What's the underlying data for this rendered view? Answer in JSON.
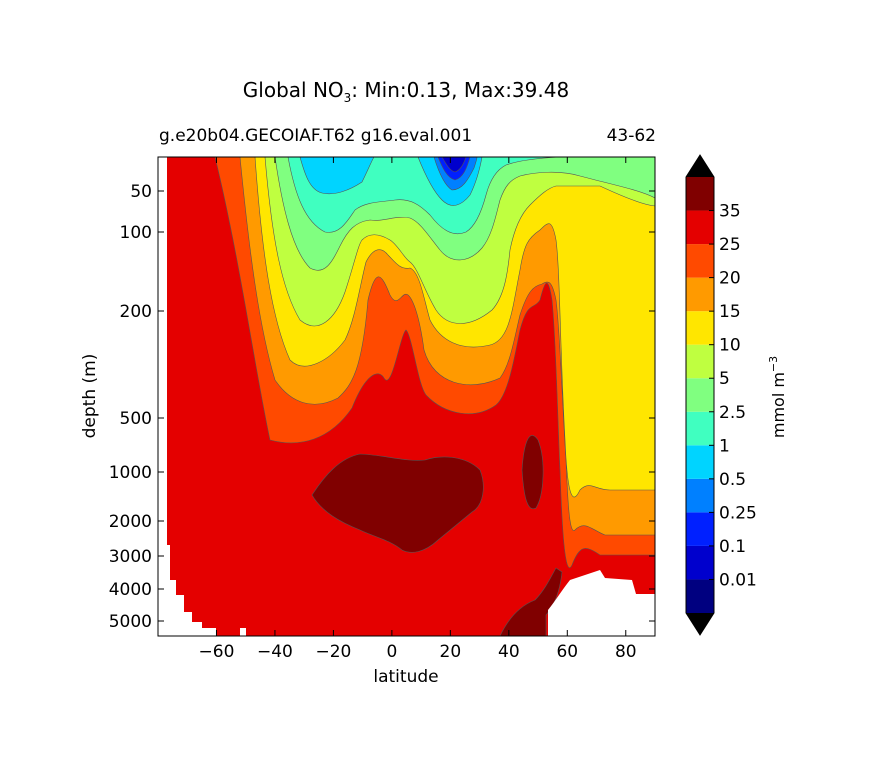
{
  "figure": {
    "title_prefix": "Global NO",
    "title_subscript": "3",
    "title_suffix": ": Min:0.13, Max:39.48",
    "subtitle_left": "g.e20b04.GECOIAF.T62 g16.eval.001",
    "subtitle_right": "43-62"
  },
  "chart_data": {
    "type": "heatmap",
    "subtype": "filled-contour",
    "xlabel": "latitude",
    "ylabel": "depth (m)",
    "x_ticks": [
      "−60",
      "−40",
      "−20",
      "0",
      "20",
      "40",
      "60",
      "80"
    ],
    "x_tick_values": [
      -60,
      -40,
      -20,
      0,
      20,
      40,
      60,
      80
    ],
    "xlim": [
      -80,
      90
    ],
    "y_ticks": [
      "50",
      "100",
      "200",
      "500",
      "1000",
      "2000",
      "3000",
      "4000",
      "5000"
    ],
    "y_tick_values": [
      50,
      100,
      200,
      500,
      1000,
      2000,
      3000,
      4000,
      5000
    ],
    "y_axis": "depth, increasing downward (stretched scale)",
    "ylim": [
      0,
      5500
    ],
    "colorbar": {
      "label": "mmol m",
      "label_superscript": "−3",
      "extend": "both",
      "levels": [
        0,
        0.01,
        0.1,
        0.25,
        0.5,
        1,
        2.5,
        5,
        10,
        15,
        20,
        25,
        35
      ],
      "tick_labels": [
        "0.01",
        "0.1",
        "0.25",
        "0.5",
        "1",
        "2.5",
        "5",
        "10",
        "15",
        "20",
        "25",
        "35"
      ],
      "colors": [
        "#000080",
        "#0000cd",
        "#0020ff",
        "#0080ff",
        "#00d4ff",
        "#40ffc0",
        "#80ff80",
        "#bfff40",
        "#ffe600",
        "#ff9a00",
        "#ff4a00",
        "#e40000",
        "#800000"
      ],
      "under_color": "#000000",
      "over_color": "#000000"
    },
    "field_description_notes": "values read from contour bands",
    "sections": [
      {
        "latitude": -70,
        "values_by_depth": {
          "50": 28,
          "500": 30,
          "1000": 30,
          "4000": 29
        }
      },
      {
        "latitude": -20,
        "values_by_depth": {
          "50": 2,
          "100": 3,
          "200": 12,
          "500": 22,
          "1000": 34,
          "2000": 36
        }
      },
      {
        "latitude": 0,
        "values_by_depth": {
          "50": 2,
          "100": 7,
          "200": 17,
          "500": 31,
          "1000": 36,
          "2000": 37
        }
      },
      {
        "latitude": 20,
        "values_by_depth": {
          "50": 0.2,
          "100": 3,
          "200": 11,
          "500": 23,
          "1000": 36
        }
      },
      {
        "latitude": 50,
        "values_by_depth": {
          "50": 9,
          "100": 14,
          "200": 27,
          "500": 33,
          "1000": 36,
          "4000": 36
        }
      },
      {
        "latitude": 80,
        "values_by_depth": {
          "50": 7,
          "100": 11,
          "500": 12,
          "2000": 13,
          "3000": 17
        }
      }
    ]
  }
}
